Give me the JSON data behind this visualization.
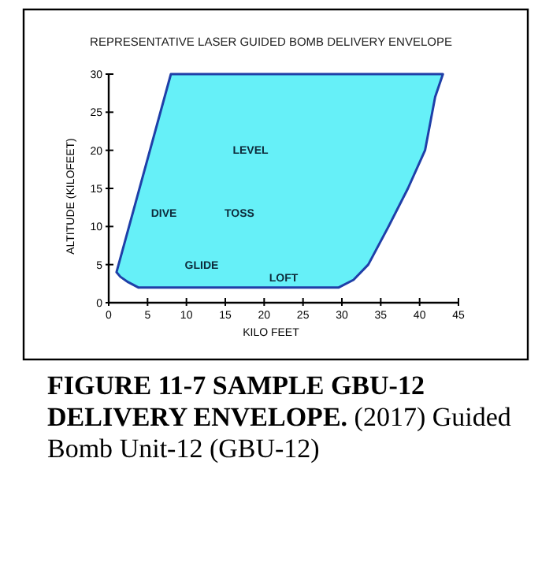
{
  "chart_data": {
    "type": "area",
    "title": "REPRESENTATIVE LASER GUIDED BOMB DELIVERY ENVELOPE",
    "xlabel": "KILO FEET",
    "ylabel": "ALTITUDE (KILOFEET)",
    "xlim": [
      0,
      45
    ],
    "xticks": [
      0,
      5,
      10,
      15,
      20,
      25,
      30,
      35,
      40,
      45
    ],
    "ylim": [
      0,
      30
    ],
    "yticks": [
      0,
      5,
      10,
      15,
      20,
      25,
      30
    ],
    "grid": false,
    "series": [
      {
        "color": "#66f0f8",
        "x": [
          1,
          8,
          43,
          42,
          40.7,
          38.5,
          36,
          33.4,
          31.5,
          29.6,
          3.8,
          2.5,
          1.5,
          1
        ],
        "values": [
          4,
          30,
          30,
          27,
          20,
          15,
          10,
          5,
          3,
          2,
          2,
          2.7,
          3.4,
          4
        ]
      }
    ],
    "annotations": [
      "LEVEL",
      "DIVE",
      "TOSS",
      "GLIDE",
      "LOFT",
      "FIGURE 11-7 SAMPLE GBU-12 DELIVERY ENVELOPE.",
      "(2017) Guided Bomb Unit-12 (GBU-12)"
    ]
  }
}
